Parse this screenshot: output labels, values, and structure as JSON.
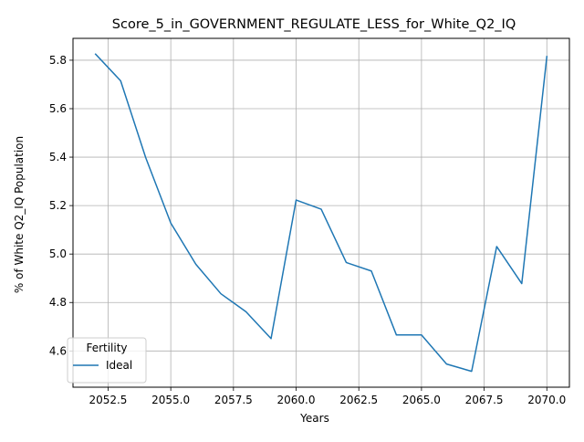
{
  "chart_data": {
    "type": "line",
    "title": "Score_5_in_GOVERNMENT_REGULATE_LESS_for_White_Q2_IQ",
    "xlabel": "Years",
    "ylabel": "% of White Q2_IQ Population",
    "xlim": [
      2051.1,
      2070.9
    ],
    "ylim": [
      4.4504,
      5.8902
    ],
    "x_ticks": [
      2052.5,
      2055.0,
      2057.5,
      2060.0,
      2062.5,
      2065.0,
      2067.5,
      2070.0
    ],
    "x_tick_labels": [
      "2052.5",
      "2055.0",
      "2057.5",
      "2060.0",
      "2062.5",
      "2065.0",
      "2067.5",
      "2070.0"
    ],
    "y_ticks": [
      4.6,
      4.8,
      5.0,
      5.2,
      5.4,
      5.6,
      5.8
    ],
    "y_tick_labels": [
      "4.6",
      "4.8",
      "5.0",
      "5.2",
      "5.4",
      "5.6",
      "5.8"
    ],
    "grid": true,
    "legend": {
      "title": "Fertility",
      "placement": "lower-left"
    },
    "series": [
      {
        "name": "Ideal",
        "color": "#1f77b4",
        "x": [
          2052,
          2053,
          2054,
          2055,
          2056,
          2057,
          2058,
          2059,
          2060,
          2061,
          2062,
          2063,
          2064,
          2065,
          2066,
          2067,
          2068,
          2069,
          2070
        ],
        "values": [
          5.825,
          5.715,
          5.398,
          5.128,
          4.958,
          4.836,
          4.762,
          4.651,
          5.223,
          5.185,
          4.965,
          4.93,
          4.666,
          4.666,
          4.546,
          4.516,
          5.031,
          4.878,
          5.815
        ]
      }
    ]
  }
}
